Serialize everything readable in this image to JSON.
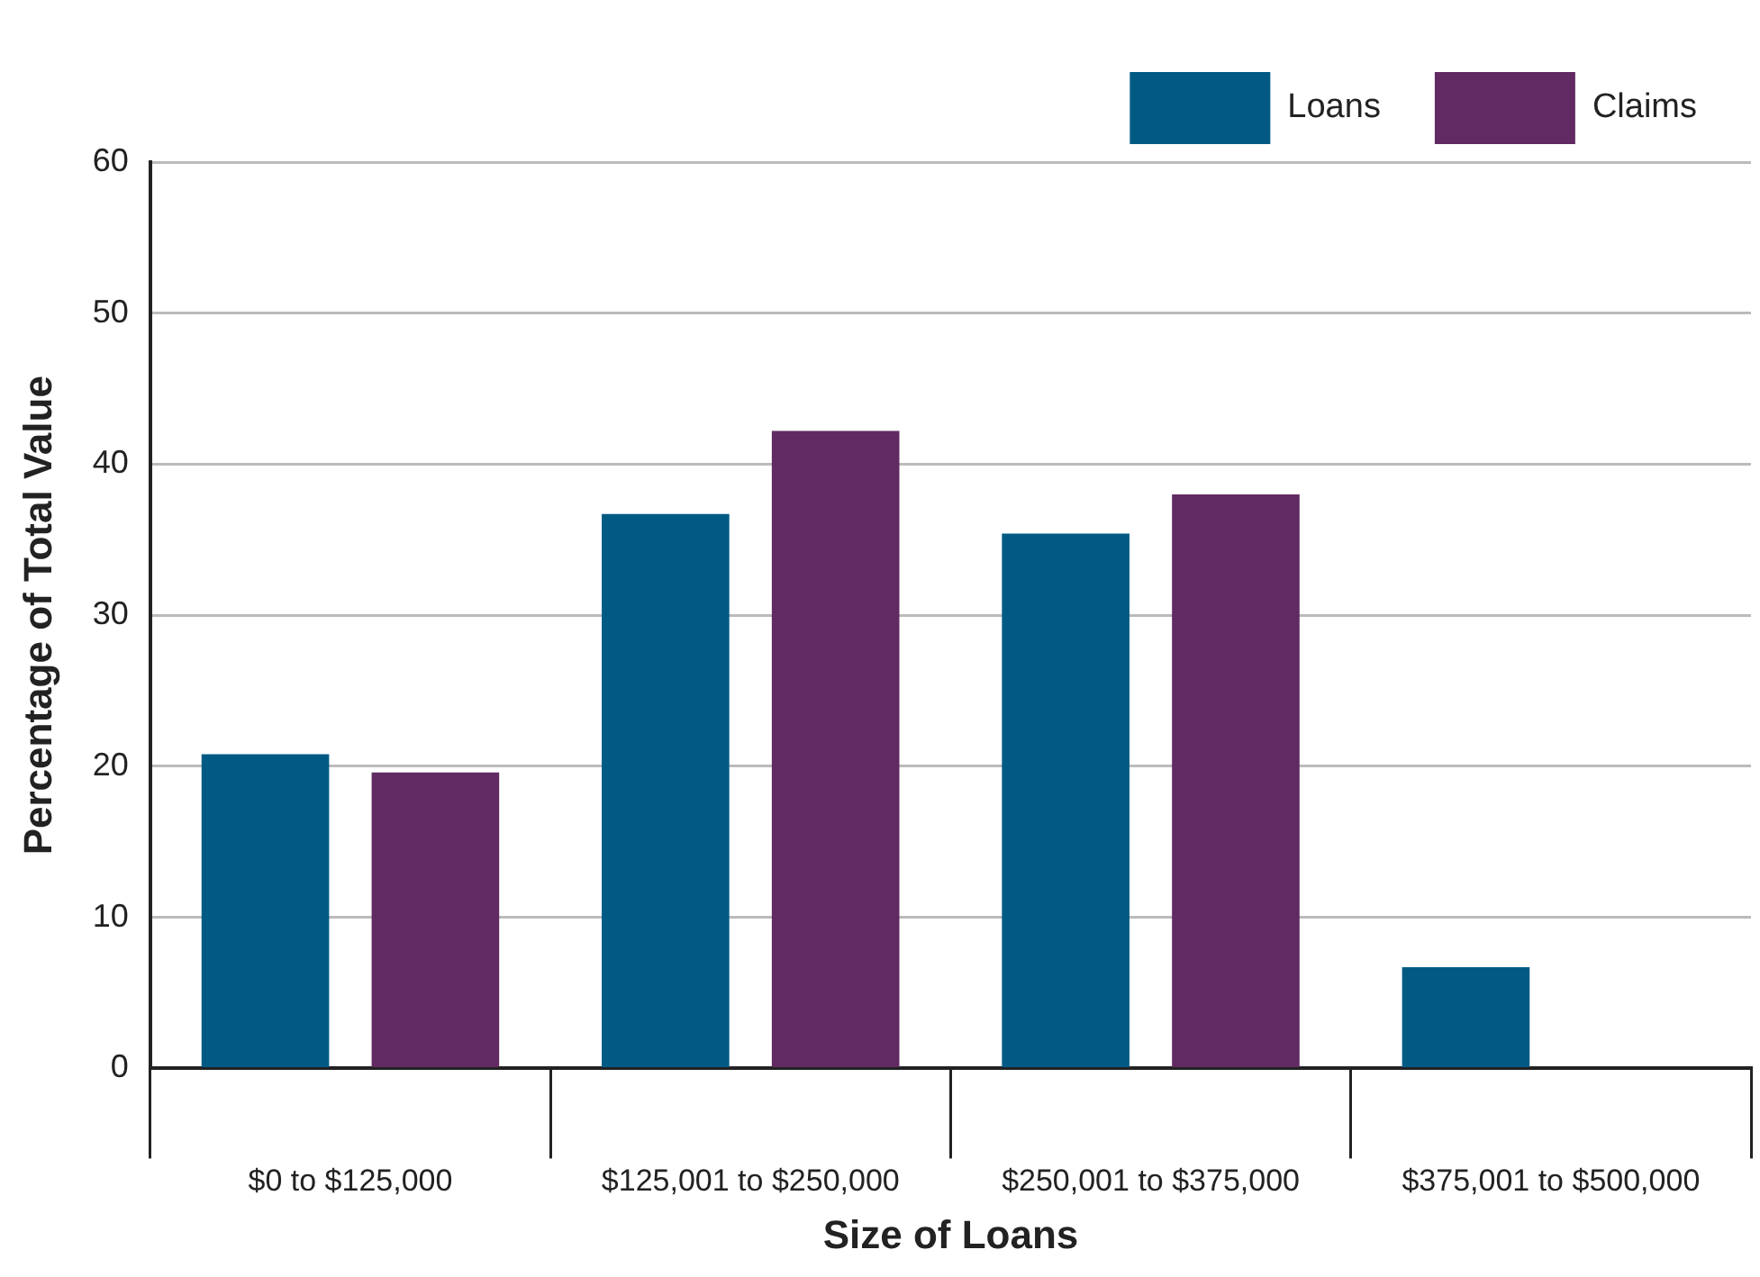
{
  "chart_data": {
    "type": "bar",
    "xlabel": "Size of Loans",
    "ylabel": "Percentage of Total Value",
    "categories": [
      "$0 to $125,000",
      "$125,001 to $250,000",
      "$250,001 to $375,000",
      "$375,001 to $500,000"
    ],
    "series": [
      {
        "name": "Loans",
        "color": "#005a84",
        "values": [
          20.8,
          36.7,
          35.4,
          6.7
        ]
      },
      {
        "name": "Claims",
        "color": "#612a62",
        "values": [
          19.6,
          42.2,
          38.0,
          0
        ]
      }
    ],
    "ylim": [
      0,
      60
    ],
    "yticks": [
      0,
      10,
      20,
      30,
      40,
      50,
      60
    ],
    "grid": "y",
    "legend": "top right"
  }
}
